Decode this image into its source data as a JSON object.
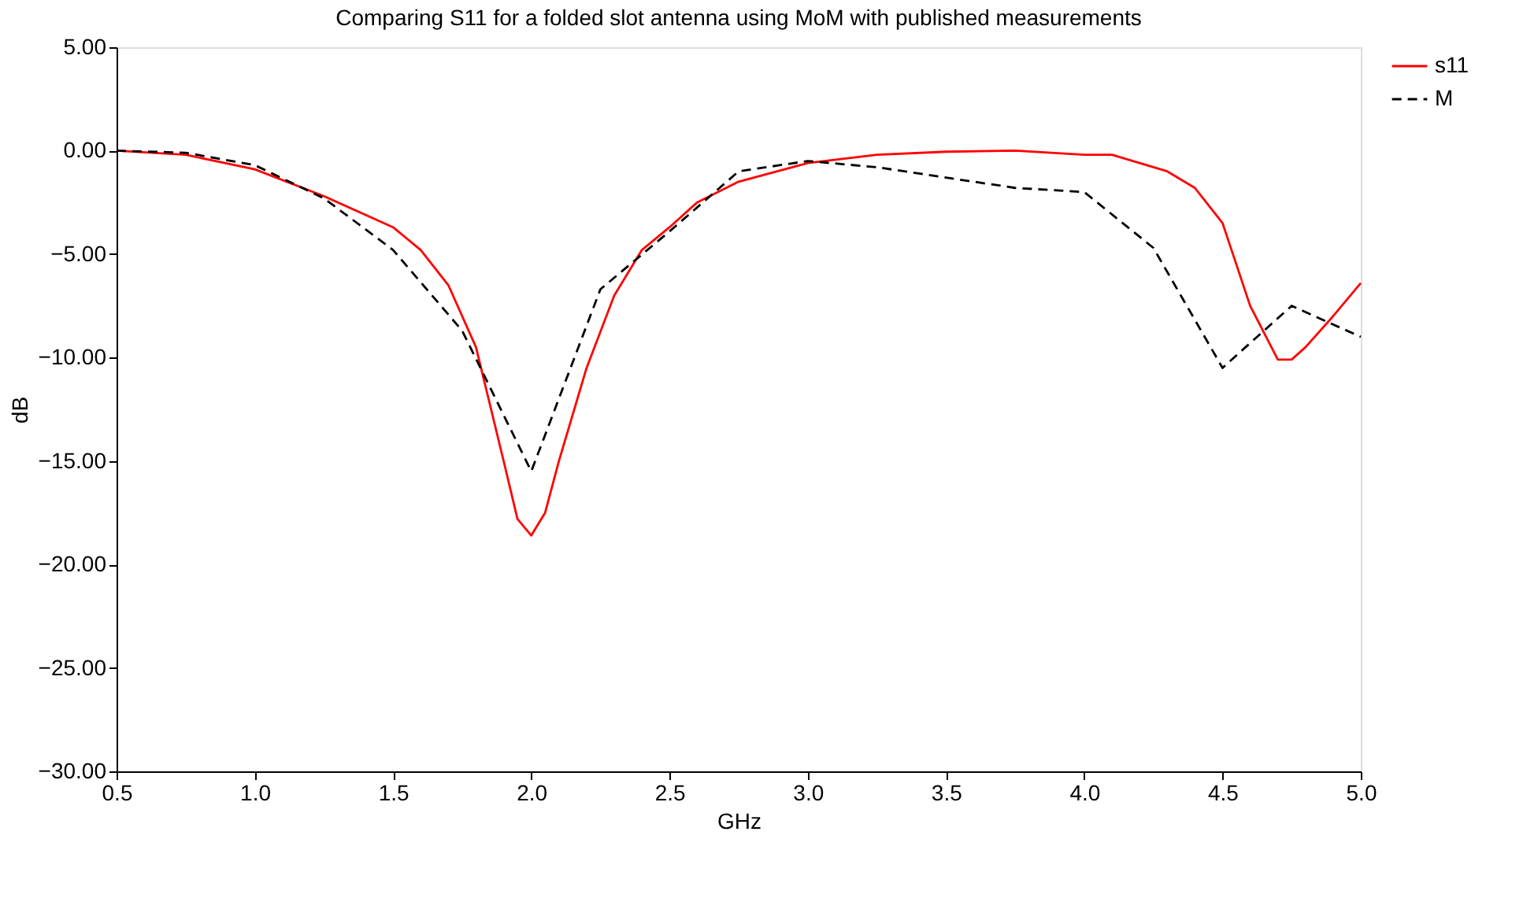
{
  "chart_data": {
    "type": "line",
    "title": "Comparing S11 for a folded slot antenna using MoM with published measurements",
    "xlabel": "GHz",
    "ylabel": "dB",
    "xlim": [
      0.5,
      5.0
    ],
    "xticks": [
      {
        "value": 0.5,
        "label": "0.5"
      },
      {
        "value": 1,
        "label": "1.0"
      },
      {
        "value": 1.5,
        "label": "1.5"
      },
      {
        "value": 2,
        "label": "2.0"
      },
      {
        "value": 2.5,
        "label": "2.5"
      },
      {
        "value": 3,
        "label": "3.0"
      },
      {
        "value": 3.5,
        "label": "3.5"
      },
      {
        "value": 4,
        "label": "4.0"
      },
      {
        "value": 4.5,
        "label": "4.5"
      },
      {
        "value": 5,
        "label": "5.0"
      }
    ],
    "ylim": [
      -30,
      5
    ],
    "yticks": [
      {
        "value": 5,
        "label": "5.00"
      },
      {
        "value": 0,
        "label": "0.00"
      },
      {
        "value": -5,
        "label": "−5.00"
      },
      {
        "value": -10,
        "label": "−10.00"
      },
      {
        "value": -15,
        "label": "−15.00"
      },
      {
        "value": -20,
        "label": "−20.00"
      },
      {
        "value": -25,
        "label": "−25.00"
      },
      {
        "value": -30,
        "label": "−30.00"
      }
    ],
    "grid": false,
    "legend": "right",
    "marker": "none",
    "series": [
      {
        "name": "s11",
        "color": "#ff0000",
        "line_style": "solid",
        "x": [
          0.5,
          0.75,
          1.0,
          1.25,
          1.5,
          1.6,
          1.7,
          1.8,
          1.9,
          1.95,
          2.0,
          2.05,
          2.1,
          2.2,
          2.3,
          2.4,
          2.5,
          2.6,
          2.75,
          3.0,
          3.25,
          3.5,
          3.75,
          4.0,
          4.1,
          4.2,
          4.3,
          4.4,
          4.5,
          4.6,
          4.7,
          4.75,
          4.8,
          4.9,
          5.0
        ],
        "values": [
          0,
          -0.2,
          -0.9,
          -2.2,
          -3.7,
          -4.8,
          -6.5,
          -9.5,
          -15,
          -17.8,
          -18.6,
          -17.5,
          -15,
          -10.5,
          -7,
          -4.8,
          -3.7,
          -2.5,
          -1.5,
          -0.6,
          -0.2,
          -0.05,
          0,
          -0.2,
          -0.2,
          -0.6,
          -1.0,
          -1.8,
          -3.5,
          -7.5,
          -10.1,
          -10.1,
          -9.5,
          -8,
          -6.4
        ]
      },
      {
        "name": "M",
        "color": "#000000",
        "line_style": "dashed",
        "x": [
          0.5,
          0.75,
          1.0,
          1.25,
          1.5,
          1.75,
          2.0,
          2.25,
          2.5,
          2.75,
          3.0,
          3.25,
          3.5,
          3.75,
          4.0,
          4.25,
          4.5,
          4.75,
          5.0
        ],
        "values": [
          0,
          -0.1,
          -0.7,
          -2.3,
          -4.8,
          -8.7,
          -15.5,
          -6.7,
          -3.9,
          -1.0,
          -0.5,
          -0.8,
          -1.3,
          -1.8,
          -2.0,
          -4.7,
          -10.5,
          -7.5,
          -9.0
        ]
      }
    ]
  }
}
